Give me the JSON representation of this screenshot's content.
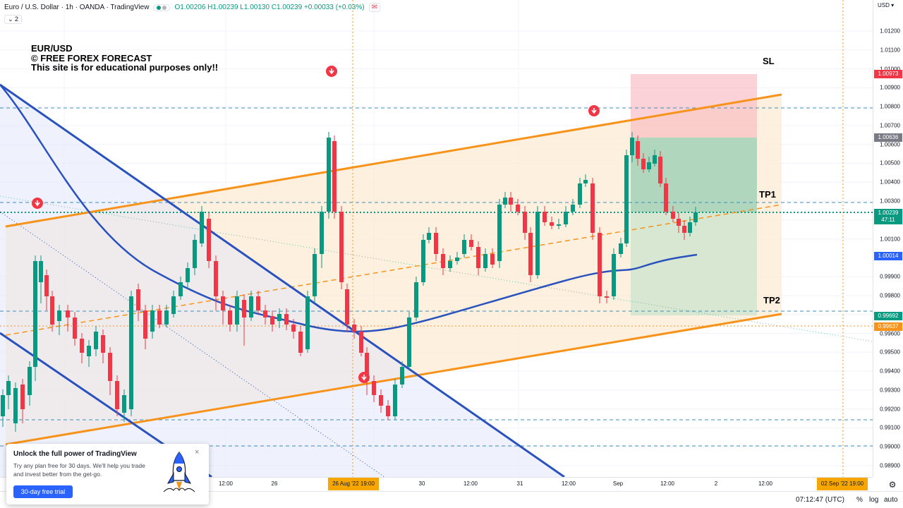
{
  "legend": {
    "symbol": "Euro / U.S. Dollar · 1h · OANDA · TradingView",
    "ohlc": "O1.00206 H1.00239 L1.00130 C1.00239 +0.00033 (+0.03%)",
    "alert_icon": "bell-icon",
    "collapse_label": "⌄ 2"
  },
  "watermark": {
    "line1": "EUR/USD",
    "line2": "© FREE FOREX FORECAST",
    "line3": "This site is for educational purposes only!!"
  },
  "labels": {
    "sl": "SL",
    "tp1": "TP1",
    "tp2": "TP2"
  },
  "price_axis": {
    "currency": "USD ▾",
    "ticks": [
      "1.01200",
      "1.01100",
      "1.01000",
      "1.00900",
      "1.00800",
      "1.00700",
      "1.00600",
      "1.00500",
      "1.00400",
      "1.00300",
      "1.00200",
      "1.00100",
      "0.99900",
      "0.99800",
      "0.99700",
      "0.99600",
      "0.99500",
      "0.99400",
      "0.99300",
      "0.99200",
      "0.99100",
      "0.99000",
      "0.98900"
    ],
    "tags": {
      "sl_price": "1.00973",
      "entry_price": "1.00636",
      "current_price": "1.00239",
      "countdown": "47:11",
      "ma_price": "1.00014",
      "tp2_price": "0.99692",
      "orange_price": "0.99637"
    }
  },
  "time_axis": {
    "labels": [
      "12:00",
      "26",
      "12:00",
      "30",
      "12:00",
      "31",
      "12:00",
      "Sep",
      "12:00",
      "2",
      "12:00"
    ],
    "tag1": "26 Aug '22  19:00",
    "tag2": "02 Sep '22  19:00"
  },
  "bottom_bar": {
    "clock": "07:12:47 (UTC)",
    "percent": "%",
    "log": "log",
    "auto": "auto"
  },
  "popup": {
    "title": "Unlock the full power of TradingView",
    "body": "Try any plan free for 30 days. We'll help you trade and invest better from the get-go.",
    "button": "30-day free trial",
    "close": "×"
  },
  "colors": {
    "up": "#089981",
    "down": "#f23645",
    "orange": "#f7931a",
    "blue": "#2a52be",
    "accent": "#2962ff"
  }
}
